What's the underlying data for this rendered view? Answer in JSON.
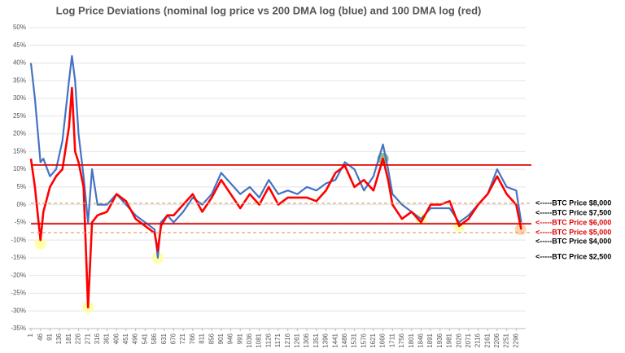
{
  "chart_data": {
    "type": "line",
    "title": "Log Price Deviations (nominal log price vs 200 DMA log (blue) and 100 DMA log (red)",
    "x": [
      1,
      20,
      46,
      60,
      91,
      120,
      150,
      181,
      195,
      210,
      226,
      250,
      271,
      290,
      316,
      361,
      406,
      451,
      496,
      541,
      586,
      601,
      616,
      646,
      676,
      721,
      766,
      811,
      856,
      901,
      946,
      991,
      1036,
      1081,
      1126,
      1171,
      1216,
      1261,
      1306,
      1351,
      1396,
      1441,
      1486,
      1531,
      1576,
      1621,
      1666,
      1690,
      1711,
      1756,
      1801,
      1846,
      1891,
      1936,
      1981,
      2026,
      2071,
      2116,
      2161,
      2206,
      2251,
      2296,
      2320
    ],
    "series": [
      {
        "color": "#4472c4",
        "values": [
          40,
          30,
          12,
          13,
          8,
          10,
          18,
          35,
          42,
          35,
          20,
          8,
          -5,
          10,
          0,
          0,
          3,
          0,
          -3,
          -5,
          -7,
          -15,
          -5,
          -3,
          -5,
          -2,
          2,
          0,
          3,
          9,
          6,
          3,
          5,
          2,
          7,
          3,
          4,
          3,
          5,
          4,
          6,
          7,
          12,
          10,
          4,
          8,
          17,
          10,
          3,
          0,
          -2,
          -4,
          -1,
          -1,
          -1,
          -5,
          -3,
          0,
          3,
          10,
          5,
          4,
          -5
        ]
      },
      {
        "color": "#ff0000",
        "values": [
          13,
          5,
          -10,
          -2,
          5,
          8,
          10,
          22,
          33,
          15,
          12,
          5,
          -29,
          -5,
          -3,
          -2,
          3,
          1,
          -4,
          -6,
          -8,
          -13,
          -6,
          -3,
          -3,
          0,
          3,
          -2,
          2,
          7,
          3,
          -1,
          3,
          0,
          5,
          0,
          2,
          2,
          2,
          1,
          4,
          9,
          11,
          5,
          7,
          4,
          13,
          7,
          0,
          -4,
          -2,
          -5,
          0,
          0,
          1,
          -6,
          -4,
          0,
          3,
          8,
          3,
          0,
          -7
        ]
      }
    ],
    "xlim": [
      1,
      2341
    ],
    "xticks": [
      1,
      46,
      91,
      136,
      181,
      226,
      271,
      316,
      361,
      406,
      451,
      496,
      541,
      586,
      631,
      676,
      721,
      766,
      811,
      856,
      901,
      946,
      991,
      1036,
      1081,
      1126,
      1171,
      1216,
      1261,
      1306,
      1351,
      1396,
      1441,
      1486,
      1531,
      1576,
      1621,
      1666,
      1711,
      1756,
      1801,
      1846,
      1891,
      1936,
      1981,
      2026,
      2071,
      2116,
      2161,
      2206,
      2251,
      2296
    ],
    "ylim": [
      -35,
      50
    ],
    "yticks": [
      {
        "value": -35,
        "label": "-35%"
      },
      {
        "value": -30,
        "label": "-30%"
      },
      {
        "value": -25,
        "label": "-25%"
      },
      {
        "value": -20,
        "label": "-20%"
      },
      {
        "value": -15,
        "label": "-15%"
      },
      {
        "value": -10,
        "label": "-10%"
      },
      {
        "value": -5,
        "label": "-5%"
      },
      {
        "value": 0,
        "label": "0%"
      },
      {
        "value": 5,
        "label": "5%"
      },
      {
        "value": 10,
        "label": "10%"
      },
      {
        "value": 15,
        "label": "15%"
      },
      {
        "value": 20,
        "label": "20%"
      },
      {
        "value": 25,
        "label": "25%"
      },
      {
        "value": 30,
        "label": "30%"
      },
      {
        "value": 35,
        "label": "35%"
      },
      {
        "value": 40,
        "label": "40%"
      },
      {
        "value": 45,
        "label": "45%"
      },
      {
        "value": 50,
        "label": "50%"
      }
    ],
    "grid": true,
    "reference_lines": [
      {
        "value": 11.2,
        "color": "#e00000",
        "dashed": false
      },
      {
        "value": -5.4,
        "color": "#e00000",
        "dashed": false
      },
      {
        "value": 0.4,
        "color": "#d9a877",
        "dashed": true
      },
      {
        "value": -7.9,
        "color": "#d9a877",
        "dashed": true
      }
    ],
    "highlights": [
      {
        "x": 46,
        "y": -11,
        "color": "#ffff99"
      },
      {
        "x": 271,
        "y": -29,
        "color": "#ffff99"
      },
      {
        "x": 601,
        "y": -15,
        "color": "#ffff99"
      },
      {
        "x": 1666,
        "y": 13,
        "color": "#7fae6f"
      },
      {
        "x": 1846,
        "y": -4,
        "color": "#ffff99"
      },
      {
        "x": 2026,
        "y": -6,
        "color": "#ffff99"
      },
      {
        "x": 2316,
        "y": -7,
        "color": "#ffcc99"
      }
    ],
    "annotations": [
      {
        "text": "<-----BTC Price $8,000",
        "color": "#000000"
      },
      {
        "text": "<-----BTC Price $7,500",
        "color": "#000000"
      },
      {
        "text": "<-----BTC Price $6,000",
        "color": "#e00000"
      },
      {
        "text": "<-----BTC Price $5,000",
        "color": "#e00000"
      },
      {
        "text": "<-----BTC Price $4,000",
        "color": "#000000"
      },
      {
        "text": "<-----BTC Price $2,500",
        "color": "#000000"
      }
    ]
  }
}
